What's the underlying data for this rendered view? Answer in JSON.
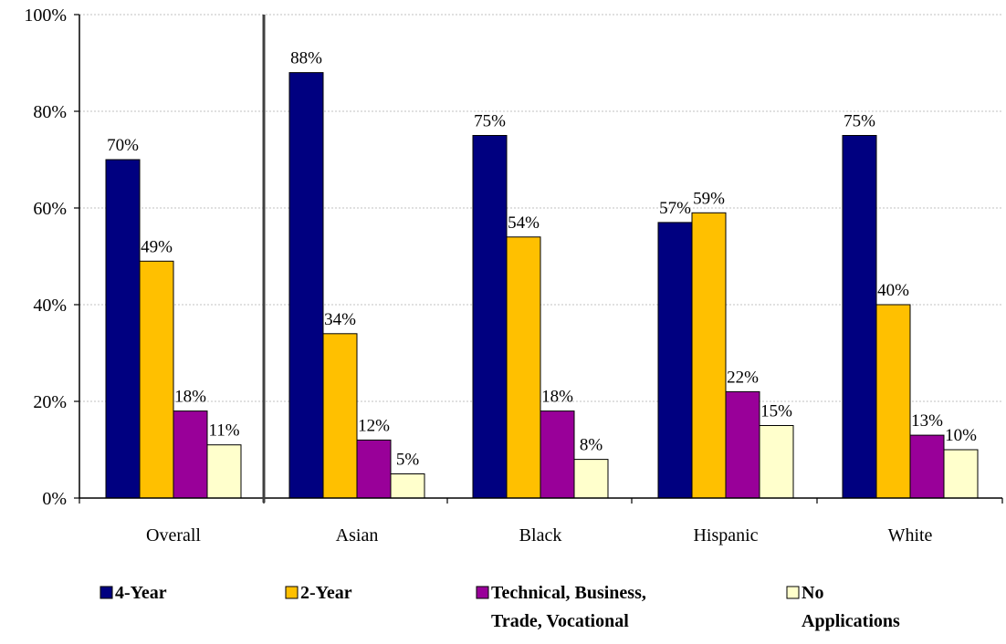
{
  "chart_data": {
    "type": "bar",
    "categories": [
      "Overall",
      "Asian",
      "Black",
      "Hispanic",
      "White"
    ],
    "series": [
      {
        "name": "4-Year",
        "values": [
          70,
          88,
          75,
          57,
          75
        ],
        "labels": [
          "70%",
          "88%",
          "75%",
          "57%",
          "75%"
        ]
      },
      {
        "name": "2-Year",
        "values": [
          49,
          34,
          54,
          59,
          40
        ],
        "labels": [
          "49%",
          "34%",
          "54%",
          "59%",
          "40%"
        ]
      },
      {
        "name": "Technical, Business, Trade, Vocational",
        "values": [
          18,
          12,
          18,
          22,
          13
        ],
        "labels": [
          "18%",
          "12%",
          "18%",
          "22%",
          "13%"
        ]
      },
      {
        "name": "No Applications",
        "values": [
          11,
          5,
          8,
          15,
          10
        ],
        "labels": [
          "11%",
          "5%",
          "8%",
          "15%",
          "10%"
        ]
      }
    ],
    "ylim": [
      0,
      100
    ],
    "yticks": [
      0,
      20,
      40,
      60,
      80,
      100
    ],
    "ytick_labels": [
      "0%",
      "20%",
      "40%",
      "60%",
      "80%",
      "100%"
    ],
    "title": "",
    "xlabel": "",
    "ylabel": "",
    "grid": true,
    "separator_after_category": "Overall",
    "legend_position": "bottom",
    "colors": [
      "#000080",
      "#ffc000",
      "#990099",
      "#ffffcc"
    ]
  },
  "legend": {
    "items": [
      {
        "lines": [
          "4-Year"
        ]
      },
      {
        "lines": [
          "2-Year"
        ]
      },
      {
        "lines": [
          "Technical, Business,",
          "Trade, Vocational"
        ]
      },
      {
        "lines": [
          "No",
          "Applications"
        ]
      }
    ]
  }
}
